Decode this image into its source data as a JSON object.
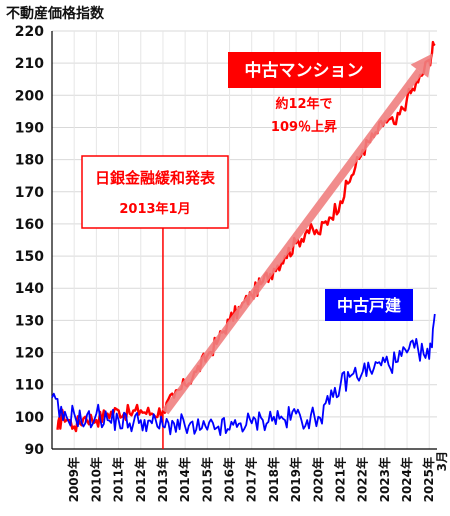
{
  "chart_data": {
    "type": "line",
    "title": "不動産価格指数",
    "ylim": [
      90,
      220
    ],
    "y_ticks": [
      "220",
      "210",
      "200",
      "190",
      "180",
      "170",
      "160",
      "150",
      "140",
      "130",
      "120",
      "110",
      "100",
      "90"
    ],
    "x_ticks": [
      "2009年",
      "2010年",
      "2011年",
      "2012年",
      "2013年",
      "2014年",
      "2015年",
      "2016年",
      "2017年",
      "2018年",
      "2019年",
      "2020年",
      "2021年",
      "2022年",
      "2023年",
      "2024年",
      "2025年"
    ],
    "x_last_label": "3月",
    "grid": true,
    "series": [
      {
        "name": "中古マンション",
        "color": "#ff0000",
        "points": [
          [
            2008.25,
            96
          ],
          [
            2008.5,
            101
          ],
          [
            2009.0,
            97
          ],
          [
            2009.5,
            100
          ],
          [
            2010.0,
            99
          ],
          [
            2010.5,
            101
          ],
          [
            2011.0,
            102
          ],
          [
            2011.5,
            101
          ],
          [
            2012.0,
            102
          ],
          [
            2012.5,
            101
          ],
          [
            2013.0,
            102
          ],
          [
            2013.5,
            106
          ],
          [
            2014.0,
            110
          ],
          [
            2014.5,
            114
          ],
          [
            2015.0,
            119
          ],
          [
            2015.5,
            124
          ],
          [
            2016.0,
            130
          ],
          [
            2016.5,
            134
          ],
          [
            2017.0,
            138
          ],
          [
            2017.5,
            142
          ],
          [
            2018.0,
            146
          ],
          [
            2018.5,
            150
          ],
          [
            2019.0,
            154
          ],
          [
            2019.5,
            158
          ],
          [
            2020.0,
            157
          ],
          [
            2020.5,
            162
          ],
          [
            2021.0,
            167
          ],
          [
            2021.5,
            175
          ],
          [
            2022.0,
            183
          ],
          [
            2022.5,
            187
          ],
          [
            2023.0,
            192
          ],
          [
            2023.5,
            191
          ],
          [
            2024.0,
            199
          ],
          [
            2024.5,
            204
          ],
          [
            2025.0,
            211
          ],
          [
            2025.25,
            216
          ]
        ]
      },
      {
        "name": "中古戸建",
        "color": "#0000ff",
        "points": [
          [
            2008.0,
            106
          ],
          [
            2008.5,
            99
          ],
          [
            2009.0,
            101
          ],
          [
            2009.5,
            98
          ],
          [
            2010.0,
            101
          ],
          [
            2010.5,
            99
          ],
          [
            2011.0,
            99
          ],
          [
            2011.5,
            98
          ],
          [
            2012.0,
            99
          ],
          [
            2012.5,
            98
          ],
          [
            2013.0,
            97
          ],
          [
            2013.5,
            98
          ],
          [
            2014.0,
            97
          ],
          [
            2014.5,
            96
          ],
          [
            2015.0,
            96
          ],
          [
            2015.5,
            97
          ],
          [
            2016.0,
            96
          ],
          [
            2016.5,
            98
          ],
          [
            2017.0,
            98
          ],
          [
            2017.5,
            99
          ],
          [
            2018.0,
            100
          ],
          [
            2018.5,
            99
          ],
          [
            2019.0,
            101
          ],
          [
            2019.5,
            99
          ],
          [
            2020.0,
            100
          ],
          [
            2020.5,
            104
          ],
          [
            2021.0,
            110
          ],
          [
            2021.5,
            113
          ],
          [
            2022.0,
            114
          ],
          [
            2022.5,
            115
          ],
          [
            2023.0,
            117
          ],
          [
            2023.5,
            117
          ],
          [
            2024.0,
            120
          ],
          [
            2024.5,
            121
          ],
          [
            2025.0,
            118
          ],
          [
            2025.25,
            132
          ]
        ]
      }
    ],
    "annotations": {
      "condo_label": "中古マンション",
      "condo_note_1": "約12年で",
      "condo_note_2": "109％上昇",
      "house_label": "中古戸建",
      "event_label_1": "日銀金融緩和発表",
      "event_label_2": "2013年1月",
      "event_x": 2013.0
    },
    "colors": {
      "condo_box": "#ff0000",
      "house_box": "#0000ff",
      "arrow": "#f08080",
      "event_line": "#ff0000"
    }
  }
}
